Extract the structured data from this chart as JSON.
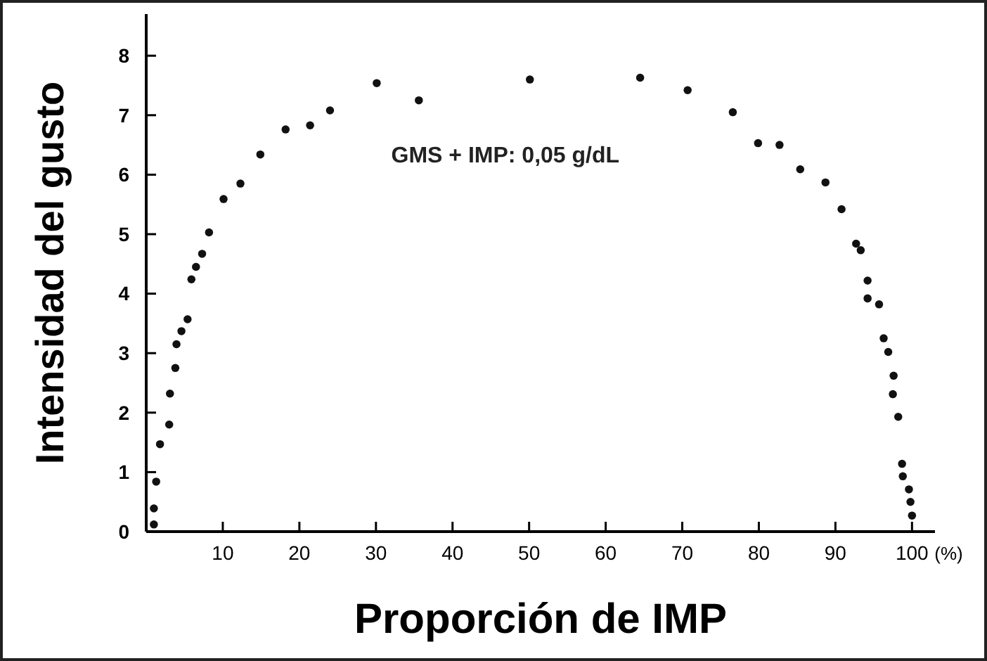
{
  "chart_data": {
    "type": "scatter",
    "xlabel": "Proporción de IMP",
    "ylabel": "Intensidad del gusto",
    "annotations": [
      "GMS + IMP: 0,05 g/dL",
      "(%)"
    ],
    "x": [
      1,
      1,
      1.3,
      1.8,
      3.0,
      3.1,
      3.8,
      3.95,
      4.6,
      5.4,
      5.9,
      6.5,
      7.3,
      8.2,
      10.1,
      12.3,
      14.9,
      18.2,
      21.4,
      24,
      30.1,
      35.6,
      50.1,
      64.5,
      70.7,
      76.6,
      79.9,
      82.7,
      85.4,
      88.7,
      90.8,
      92.7,
      93.3,
      94.2,
      94.2,
      95.7,
      96.3,
      96.9,
      97.6,
      97.5,
      98.2,
      98.7,
      98.8,
      99.6,
      99.8,
      100
    ],
    "values": [
      0.12,
      0.39,
      0.84,
      1.47,
      1.8,
      2.32,
      2.75,
      3.15,
      3.37,
      3.57,
      4.24,
      4.45,
      4.67,
      5.03,
      5.59,
      5.85,
      6.34,
      6.76,
      6.83,
      7.08,
      7.54,
      7.25,
      7.6,
      7.63,
      7.42,
      7.05,
      6.53,
      6.5,
      6.09,
      5.87,
      5.42,
      4.84,
      4.73,
      4.22,
      3.92,
      3.82,
      3.25,
      3.02,
      2.62,
      2.31,
      1.93,
      1.14,
      0.93,
      0.71,
      0.5,
      0.27
    ],
    "color": "#111111",
    "marker": "circle",
    "xlim": [
      0,
      103
    ],
    "ylim": [
      0,
      8.7
    ],
    "xticks": [
      10,
      20,
      30,
      40,
      50,
      60,
      70,
      80,
      90,
      100
    ],
    "yticks": [
      0,
      1,
      2,
      3,
      4,
      5,
      6,
      7,
      8
    ],
    "grid": false
  }
}
